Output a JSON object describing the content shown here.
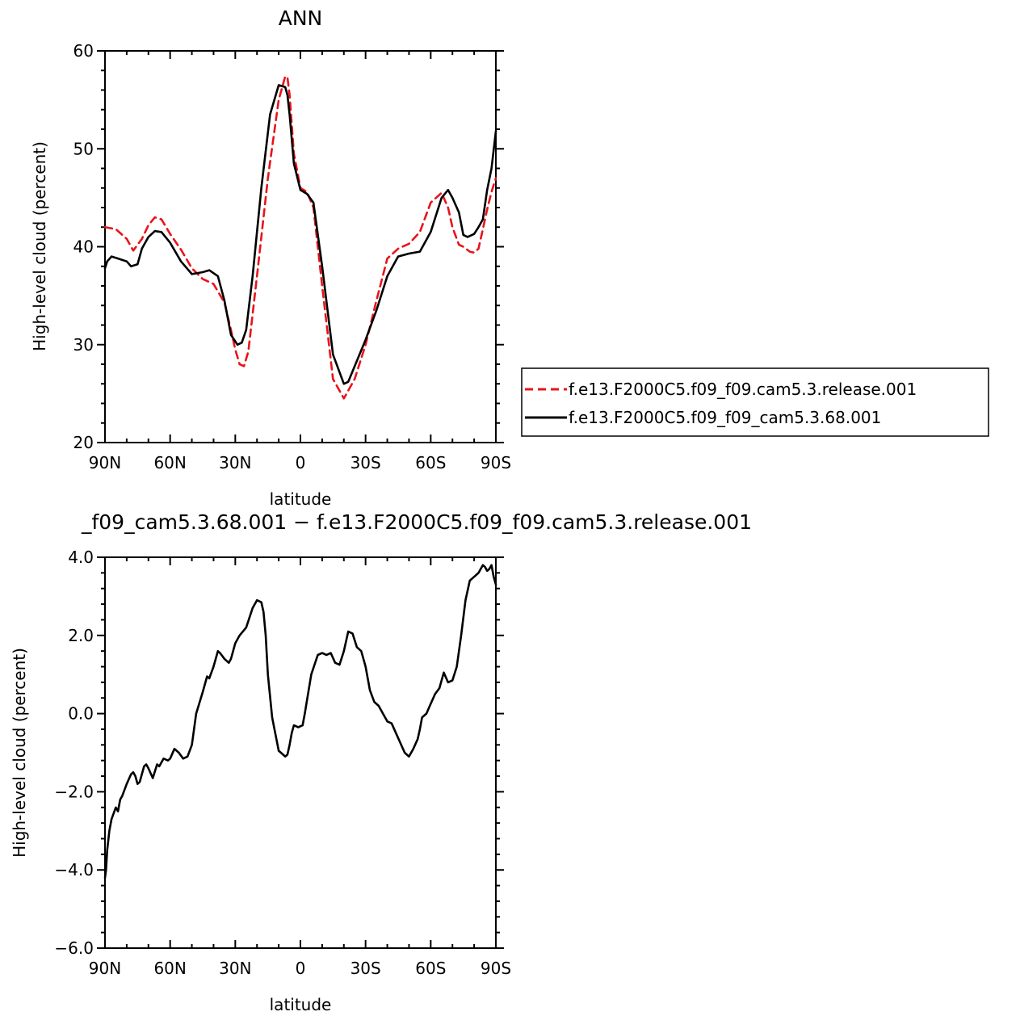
{
  "chart_data": [
    {
      "type": "line",
      "title": "ANN",
      "xlabel": "latitude",
      "ylabel": "High-level cloud (percent)",
      "xlim": [
        90,
        -90
      ],
      "ylim": [
        20,
        60
      ],
      "xticks": [
        90,
        60,
        30,
        0,
        -30,
        -60,
        -90
      ],
      "xtick_labels": [
        "90N",
        "60N",
        "30N",
        "0",
        "30S",
        "60S",
        "90S"
      ],
      "yticks": [
        20,
        30,
        40,
        50,
        60
      ],
      "ytick_labels": [
        "20",
        "30",
        "40",
        "50",
        "60"
      ],
      "legend_position": "right",
      "series": [
        {
          "name": "f.e13.F2000C5.f09_f09.cam5.3.release.001",
          "color": "#e8141b",
          "dash": "dashed",
          "x": [
            90,
            85,
            80,
            77,
            73,
            70,
            67,
            64,
            60,
            55,
            50,
            45,
            40,
            35,
            32,
            30,
            28,
            26,
            24,
            20,
            15,
            10,
            7,
            6,
            5,
            3,
            0,
            -3,
            -6,
            -10,
            -15,
            -20,
            -25,
            -30,
            -35,
            -40,
            -45,
            -50,
            -55,
            -60,
            -65,
            -68,
            -70,
            -73,
            -75,
            -78,
            -80,
            -82,
            -84,
            -86,
            -88,
            -90
          ],
          "y": [
            42.0,
            41.8,
            40.8,
            39.6,
            40.8,
            42.2,
            43.0,
            42.8,
            41.3,
            39.7,
            37.8,
            36.7,
            36.2,
            34.3,
            31.5,
            29.5,
            28.0,
            27.8,
            29.3,
            37.0,
            47.0,
            55.0,
            57.4,
            57.3,
            55.5,
            49.5,
            46.0,
            45.6,
            44.0,
            36.0,
            26.5,
            24.5,
            26.5,
            30.0,
            34.5,
            38.8,
            39.8,
            40.3,
            41.5,
            44.5,
            45.5,
            44.0,
            42.0,
            40.2,
            40.0,
            39.5,
            39.4,
            39.8,
            41.8,
            43.8,
            45.6,
            47.0
          ]
        },
        {
          "name": "f.e13.F2000C5.f09_f09_cam5.3.68.001",
          "color": "#000000",
          "dash": "solid",
          "x": [
            90,
            89,
            87,
            84,
            80,
            78,
            75,
            73,
            70,
            67,
            64,
            60,
            55,
            50,
            45,
            42,
            38,
            35,
            32,
            29,
            27,
            25,
            22,
            18,
            14,
            10,
            7,
            6,
            5,
            3,
            0,
            -3,
            -6,
            -10,
            -15,
            -20,
            -22,
            -25,
            -30,
            -35,
            -40,
            -45,
            -50,
            -55,
            -60,
            -65,
            -68,
            -70,
            -73,
            -75,
            -77,
            -80,
            -82,
            -84,
            -86,
            -88,
            -90
          ],
          "y": [
            37.8,
            38.5,
            39.0,
            38.8,
            38.5,
            38.0,
            38.2,
            39.8,
            41.0,
            41.6,
            41.5,
            40.4,
            38.5,
            37.2,
            37.4,
            37.6,
            37.0,
            34.5,
            31.0,
            30.0,
            30.2,
            31.5,
            37.0,
            46.0,
            53.5,
            56.5,
            56.3,
            55.5,
            53.5,
            48.5,
            45.8,
            45.4,
            44.5,
            38.0,
            29.0,
            26.0,
            26.2,
            27.8,
            30.5,
            33.5,
            37.0,
            39.0,
            39.3,
            39.5,
            41.5,
            45.0,
            45.8,
            45.0,
            43.5,
            41.2,
            41.0,
            41.3,
            42.0,
            42.8,
            45.8,
            48.0,
            51.8
          ]
        }
      ]
    },
    {
      "type": "line",
      "title": "_f09_cam5.3.68.001 − f.e13.F2000C5.f09_f09.cam5.3.release.001",
      "xlabel": "latitude",
      "ylabel": "High-level cloud (percent)",
      "xlim": [
        90,
        -90
      ],
      "ylim": [
        -6,
        4
      ],
      "xticks": [
        90,
        60,
        30,
        0,
        -30,
        -60,
        -90
      ],
      "xtick_labels": [
        "90N",
        "60N",
        "30N",
        "0",
        "30S",
        "60S",
        "90S"
      ],
      "yticks": [
        -6,
        -4,
        -2,
        0,
        2,
        4
      ],
      "ytick_labels": [
        "−6.0",
        "−4.0",
        "−2.0",
        "0.0",
        "2.0",
        "4.0"
      ],
      "series": [
        {
          "name": "",
          "color": "#000000",
          "dash": "solid",
          "x": [
            90,
            89.5,
            89,
            88,
            87,
            85,
            84,
            83,
            82,
            80,
            78,
            77,
            76,
            75,
            74,
            72,
            71,
            70,
            68,
            66,
            65,
            63,
            61,
            60,
            58,
            56,
            54,
            52,
            50,
            48,
            45,
            43,
            42,
            40,
            38,
            37,
            35,
            33,
            32,
            30,
            28,
            25,
            22,
            20,
            18,
            17,
            16,
            15,
            13,
            10,
            8,
            7,
            6,
            5,
            4,
            3,
            1,
            -1,
            -2,
            -5,
            -8,
            -10,
            -12,
            -14,
            -16,
            -18,
            -20,
            -22,
            -24,
            -26,
            -28,
            -30,
            -32,
            -34,
            -36,
            -38,
            -40,
            -42,
            -44,
            -46,
            -48,
            -50,
            -52,
            -54,
            -55,
            -56,
            -58,
            -60,
            -62,
            -64,
            -66,
            -68,
            -70,
            -72,
            -74,
            -76,
            -78,
            -80,
            -82,
            -84,
            -85,
            -86,
            -87,
            -88,
            -89,
            -90
          ],
          "y": [
            -4.2,
            -4.0,
            -3.5,
            -3.0,
            -2.7,
            -2.4,
            -2.5,
            -2.2,
            -2.1,
            -1.8,
            -1.55,
            -1.5,
            -1.6,
            -1.8,
            -1.75,
            -1.35,
            -1.3,
            -1.4,
            -1.65,
            -1.3,
            -1.35,
            -1.15,
            -1.2,
            -1.15,
            -0.9,
            -1.0,
            -1.15,
            -1.1,
            -0.8,
            0.0,
            0.55,
            0.95,
            0.9,
            1.2,
            1.6,
            1.55,
            1.4,
            1.3,
            1.4,
            1.8,
            2.0,
            2.2,
            2.7,
            2.9,
            2.85,
            2.6,
            2.0,
            1.0,
            -0.1,
            -0.95,
            -1.05,
            -1.1,
            -1.05,
            -0.8,
            -0.5,
            -0.3,
            -0.35,
            -0.3,
            0.0,
            1.0,
            1.5,
            1.55,
            1.5,
            1.55,
            1.3,
            1.25,
            1.6,
            2.1,
            2.05,
            1.7,
            1.6,
            1.2,
            0.6,
            0.3,
            0.2,
            0.0,
            -0.2,
            -0.25,
            -0.5,
            -0.75,
            -1.0,
            -1.1,
            -0.9,
            -0.65,
            -0.4,
            -0.1,
            0.0,
            0.25,
            0.5,
            0.65,
            1.05,
            0.8,
            0.85,
            1.2,
            2.0,
            2.9,
            3.4,
            3.5,
            3.6,
            3.8,
            3.75,
            3.65,
            3.7,
            3.8,
            3.5,
            3.3
          ]
        }
      ]
    }
  ]
}
